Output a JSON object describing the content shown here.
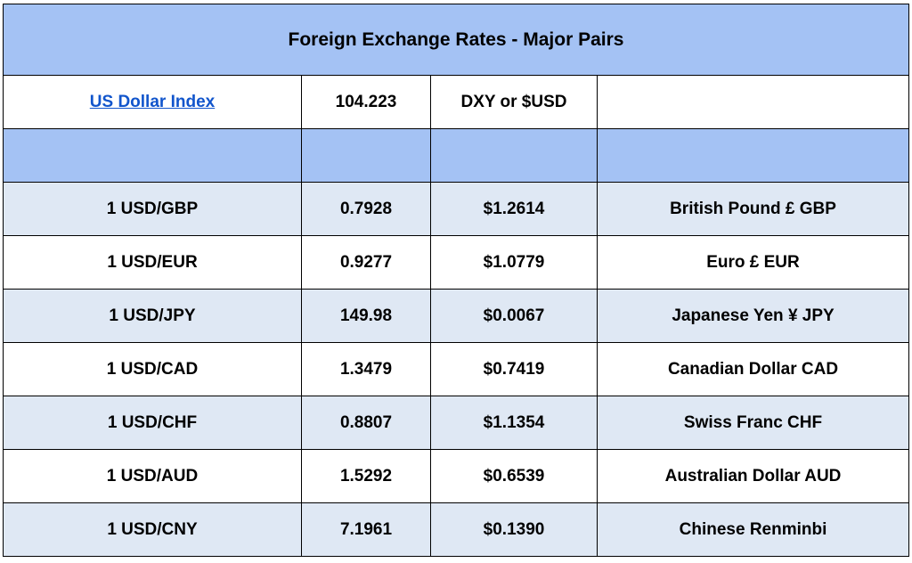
{
  "title": "Foreign Exchange Rates - Major Pairs",
  "colors": {
    "header_blue": "#a4c2f4",
    "row_light_blue": "#dfe8f4",
    "row_white": "#ffffff",
    "link_blue": "#1155cc",
    "border": "#000000"
  },
  "index_row": {
    "name": "US Dollar Index",
    "value": "104.223",
    "symbol": "DXY or $USD",
    "extra": ""
  },
  "rows": [
    {
      "pair": "1 USD/GBP",
      "rate": "0.7928",
      "usd_value": "$1.2614",
      "currency": "British Pound £ GBP"
    },
    {
      "pair": "1 USD/EUR",
      "rate": "0.9277",
      "usd_value": "$1.0779",
      "currency": "Euro £ EUR"
    },
    {
      "pair": "1 USD/JPY",
      "rate": "149.98",
      "usd_value": "$0.0067",
      "currency": "Japanese Yen ¥ JPY"
    },
    {
      "pair": "1 USD/CAD",
      "rate": "1.3479",
      "usd_value": "$0.7419",
      "currency": "Canadian Dollar CAD"
    },
    {
      "pair": "1 USD/CHF",
      "rate": "0.8807",
      "usd_value": "$1.1354",
      "currency": "Swiss Franc CHF"
    },
    {
      "pair": "1 USD/AUD",
      "rate": "1.5292",
      "usd_value": "$0.6539",
      "currency": "Australian Dollar AUD"
    },
    {
      "pair": "1 USD/CNY",
      "rate": "7.1961",
      "usd_value": "$0.1390",
      "currency": "Chinese Renminbi"
    }
  ]
}
